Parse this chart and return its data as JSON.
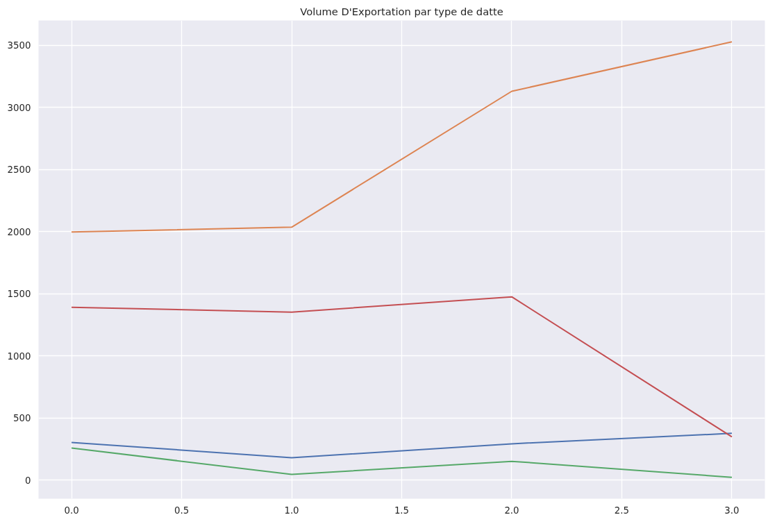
{
  "chart_data": {
    "type": "line",
    "title": "Volume D'Exportation par type de datte",
    "x": [
      0,
      1,
      2,
      3
    ],
    "series": [
      {
        "color": "#4c72b0",
        "values": [
          303,
          180,
          292,
          376
        ]
      },
      {
        "color": "#dd8452",
        "values": [
          1997,
          2036,
          3130,
          3528
        ]
      },
      {
        "color": "#55a868",
        "values": [
          258,
          45,
          151,
          22
        ]
      },
      {
        "color": "#c44e52",
        "values": [
          1391,
          1352,
          1475,
          348
        ]
      }
    ],
    "xlim": [
      -0.15,
      3.15
    ],
    "ylim": [
      -150,
      3700
    ],
    "xticks": [
      {
        "value": 0,
        "label": "0.0"
      },
      {
        "value": 0.5,
        "label": "0.5"
      },
      {
        "value": 1,
        "label": "1.0"
      },
      {
        "value": 1.5,
        "label": "1.5"
      },
      {
        "value": 2,
        "label": "2.0"
      },
      {
        "value": 2.5,
        "label": "2.5"
      },
      {
        "value": 3,
        "label": "3.0"
      }
    ],
    "yticks": [
      0,
      500,
      1000,
      1500,
      2000,
      2500,
      3000,
      3500
    ],
    "grid": true,
    "marker": "none",
    "line_style": "solid"
  }
}
